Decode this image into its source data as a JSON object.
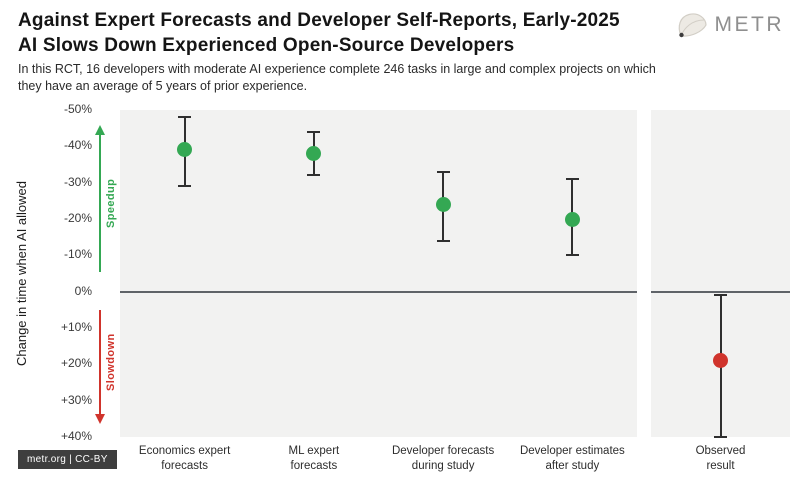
{
  "header": {
    "title_line1": "Against Expert Forecasts and Developer Self-Reports, Early-2025",
    "title_line2": "AI Slows Down Experienced Open-Source Developers",
    "logo_text": "METR"
  },
  "subtitle": "In this RCT, 16 developers with moderate AI experience complete 246 tasks in large and complex projects on which they have an average of 5 years of prior experience.",
  "footer": {
    "license_badge": "metr.org | CC-BY"
  },
  "chart_data": {
    "type": "scatter",
    "title": "Against Expert Forecasts and Developer Self-Reports, Early-2025 AI Slows Down Experienced Open-Source Developers",
    "ylabel": "Change in time when AI allowed",
    "ylim": [
      -50,
      40
    ],
    "y_ticks": [
      -50,
      -40,
      -30,
      -20,
      -10,
      0,
      10,
      20,
      30,
      40
    ],
    "y_tick_labels": [
      "-50%",
      "-40%",
      "-30%",
      "-20%",
      "-10%",
      "0%",
      "+10%",
      "+20%",
      "+30%",
      "+40%"
    ],
    "grid": false,
    "legend": false,
    "annotations": {
      "speedup": "Speedup",
      "slowdown": "Slowdown"
    },
    "colors": {
      "green": "#34a853",
      "red": "#d0342c",
      "error_bar": "#2f2f2f",
      "panel_bg": "#f2f2f1",
      "zero_line": "#5f6368"
    },
    "points": [
      {
        "label": [
          "Economics expert",
          "forecasts"
        ],
        "value": -39,
        "ci": [
          -48,
          -29
        ],
        "color": "green",
        "panel": "main"
      },
      {
        "label": [
          "ML expert",
          "forecasts"
        ],
        "value": -38,
        "ci": [
          -44,
          -32
        ],
        "color": "green",
        "panel": "main"
      },
      {
        "label": [
          "Developer forecasts",
          "during study"
        ],
        "value": -24,
        "ci": [
          -33,
          -14
        ],
        "color": "green",
        "panel": "main"
      },
      {
        "label": [
          "Developer estimates",
          "after study"
        ],
        "value": -20,
        "ci": [
          -31,
          -10
        ],
        "color": "green",
        "panel": "main"
      },
      {
        "label": [
          "Observed",
          "result"
        ],
        "value": 19,
        "ci": [
          1,
          40
        ],
        "color": "red",
        "panel": "observed"
      }
    ]
  }
}
